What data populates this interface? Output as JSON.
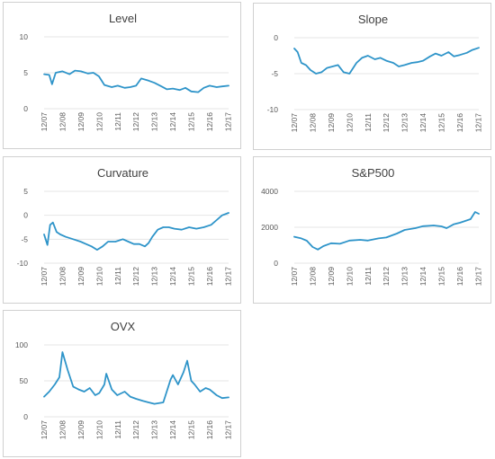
{
  "color": "#2e94c9",
  "chart_data": [
    {
      "type": "line",
      "title": "Level",
      "ylim": [
        0,
        10
      ],
      "yticks": [
        "10",
        "5",
        "0"
      ],
      "xticks": [
        "12/07",
        "12/08",
        "12/09",
        "12/10",
        "12/11",
        "12/12",
        "12/13",
        "12/14",
        "12/15",
        "12/16",
        "12/17"
      ],
      "x": [
        2007.92,
        2008.2,
        2008.35,
        2008.55,
        2008.92,
        2009.3,
        2009.6,
        2009.92,
        2010.3,
        2010.6,
        2010.9,
        2011.2,
        2011.6,
        2011.92,
        2012.3,
        2012.6,
        2012.92,
        2013.2,
        2013.6,
        2013.92,
        2014.3,
        2014.6,
        2014.92,
        2015.3,
        2015.6,
        2015.92,
        2016.3,
        2016.6,
        2016.92,
        2017.3,
        2017.6,
        2017.95
      ],
      "series": [
        {
          "values": [
            4.8,
            4.7,
            3.4,
            5.0,
            5.2,
            4.8,
            5.3,
            5.2,
            4.9,
            5.0,
            4.5,
            3.3,
            3.0,
            3.2,
            2.9,
            3.0,
            3.2,
            4.2,
            3.9,
            3.6,
            3.1,
            2.7,
            2.8,
            2.6,
            2.9,
            2.4,
            2.3,
            2.9,
            3.2,
            3.0,
            3.1,
            3.2
          ]
        }
      ]
    },
    {
      "type": "line",
      "title": "Slope",
      "ylim": [
        -10,
        0
      ],
      "yticks": [
        "0",
        "-5",
        "-10"
      ],
      "xticks": [
        "12/07",
        "12/08",
        "12/09",
        "12/10",
        "12/11",
        "12/12",
        "12/13",
        "12/14",
        "12/15",
        "12/16",
        "12/17"
      ],
      "x": [
        2007.92,
        2008.1,
        2008.3,
        2008.55,
        2008.8,
        2009.1,
        2009.4,
        2009.7,
        2010.0,
        2010.3,
        2010.6,
        2010.92,
        2011.3,
        2011.6,
        2011.92,
        2012.3,
        2012.6,
        2012.92,
        2013.3,
        2013.6,
        2013.92,
        2014.3,
        2014.6,
        2014.92,
        2015.3,
        2015.6,
        2015.92,
        2016.3,
        2016.6,
        2016.92,
        2017.3,
        2017.6,
        2017.95
      ],
      "series": [
        {
          "values": [
            -1.5,
            -2.0,
            -3.5,
            -3.8,
            -4.5,
            -5.0,
            -4.8,
            -4.2,
            -4.0,
            -3.8,
            -4.8,
            -5.0,
            -3.5,
            -2.8,
            -2.5,
            -3.0,
            -2.8,
            -3.2,
            -3.5,
            -4.0,
            -3.8,
            -3.5,
            -3.4,
            -3.2,
            -2.6,
            -2.2,
            -2.5,
            -2.0,
            -2.6,
            -2.4,
            -2.1,
            -1.7,
            -1.4
          ]
        }
      ]
    },
    {
      "type": "line",
      "title": "Curvature",
      "ylim": [
        -10,
        5
      ],
      "yticks": [
        "5",
        "0",
        "-5",
        "-10"
      ],
      "xticks": [
        "12/07",
        "12/08",
        "12/09",
        "12/10",
        "12/11",
        "12/12",
        "12/13",
        "12/14",
        "12/15",
        "12/16",
        "12/17"
      ],
      "x": [
        2007.92,
        2008.1,
        2008.25,
        2008.4,
        2008.6,
        2008.8,
        2009.1,
        2009.5,
        2009.9,
        2010.2,
        2010.5,
        2010.8,
        2011.1,
        2011.4,
        2011.8,
        2012.2,
        2012.5,
        2012.8,
        2013.1,
        2013.4,
        2013.6,
        2013.8,
        2014.1,
        2014.4,
        2014.7,
        2015.0,
        2015.4,
        2015.8,
        2016.2,
        2016.6,
        2017.0,
        2017.3,
        2017.6,
        2017.95
      ],
      "series": [
        {
          "values": [
            -4.0,
            -6.2,
            -2.0,
            -1.5,
            -3.5,
            -4.0,
            -4.5,
            -5.0,
            -5.5,
            -6.0,
            -6.5,
            -7.2,
            -6.5,
            -5.5,
            -5.5,
            -5.0,
            -5.5,
            -6.0,
            -6.0,
            -6.5,
            -5.8,
            -4.5,
            -3.0,
            -2.5,
            -2.5,
            -2.8,
            -3.0,
            -2.5,
            -2.8,
            -2.5,
            -2.0,
            -1.0,
            0.0,
            0.5
          ]
        }
      ]
    },
    {
      "type": "line",
      "title": "S&P500",
      "ylim": [
        0,
        4000
      ],
      "yticks": [
        "4000",
        "2000",
        "0"
      ],
      "xticks": [
        "12/07",
        "12/08",
        "12/09",
        "12/10",
        "12/11",
        "12/12",
        "12/13",
        "12/14",
        "12/15",
        "12/16",
        "12/17"
      ],
      "x": [
        2007.92,
        2008.3,
        2008.6,
        2008.92,
        2009.2,
        2009.5,
        2009.92,
        2010.4,
        2010.92,
        2011.5,
        2011.92,
        2012.5,
        2012.92,
        2013.5,
        2013.92,
        2014.5,
        2014.92,
        2015.5,
        2015.92,
        2016.2,
        2016.6,
        2016.92,
        2017.5,
        2017.75,
        2017.95
      ],
      "series": [
        {
          "values": [
            1470,
            1380,
            1250,
            900,
            760,
            950,
            1110,
            1080,
            1260,
            1300,
            1260,
            1380,
            1430,
            1650,
            1850,
            1950,
            2060,
            2100,
            2050,
            1950,
            2170,
            2250,
            2450,
            2850,
            2750
          ]
        }
      ]
    },
    {
      "type": "line",
      "title": "OVX",
      "ylim": [
        0,
        100
      ],
      "yticks": [
        "100",
        "50",
        "0"
      ],
      "xticks": [
        "12/07",
        "12/08",
        "12/09",
        "12/10",
        "12/11",
        "12/12",
        "12/13",
        "12/14",
        "12/15",
        "12/16",
        "12/17"
      ],
      "x": [
        2007.92,
        2008.2,
        2008.5,
        2008.75,
        2008.92,
        2009.2,
        2009.5,
        2009.8,
        2010.1,
        2010.4,
        2010.7,
        2010.92,
        2011.2,
        2011.3,
        2011.6,
        2011.9,
        2012.3,
        2012.6,
        2012.92,
        2013.3,
        2013.6,
        2013.92,
        2014.4,
        2014.8,
        2014.92,
        2015.2,
        2015.5,
        2015.7,
        2015.92,
        2016.1,
        2016.4,
        2016.7,
        2016.92,
        2017.3,
        2017.6,
        2017.95
      ],
      "series": [
        {
          "values": [
            28,
            35,
            45,
            55,
            90,
            65,
            42,
            38,
            35,
            40,
            30,
            33,
            45,
            60,
            38,
            30,
            35,
            28,
            25,
            22,
            20,
            18,
            20,
            52,
            58,
            45,
            62,
            78,
            50,
            45,
            35,
            40,
            38,
            30,
            26,
            27
          ]
        }
      ]
    }
  ]
}
